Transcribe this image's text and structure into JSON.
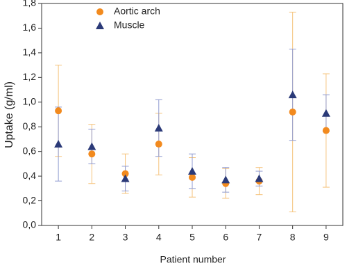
{
  "chart_data": {
    "type": "scatter",
    "x_label": "Patient number",
    "y_label": "Uptake (g/ml)",
    "x": [
      1,
      2,
      3,
      4,
      5,
      6,
      7,
      8,
      9
    ],
    "series": [
      {
        "name": "Aortic arch",
        "color": "#f28a1e",
        "error_color": "#f5c27a",
        "marker": "circle",
        "values": [
          0.93,
          0.58,
          0.42,
          0.66,
          0.39,
          0.34,
          0.36,
          0.92,
          0.77
        ],
        "errors": [
          0.37,
          0.24,
          0.16,
          0.25,
          0.16,
          0.12,
          0.11,
          0.81,
          0.46
        ]
      },
      {
        "name": "Muscle",
        "color": "#2b3a78",
        "error_color": "#8f9ad0",
        "marker": "triangle",
        "values": [
          0.66,
          0.64,
          0.38,
          0.79,
          0.44,
          0.37,
          0.38,
          1.06,
          0.91
        ],
        "errors": [
          0.3,
          0.14,
          0.1,
          0.23,
          0.14,
          0.1,
          0.06,
          0.37,
          0.15
        ]
      }
    ],
    "xlim": [
      0.5,
      9.5
    ],
    "xticks": [
      1,
      2,
      3,
      4,
      5,
      6,
      7,
      8,
      9
    ],
    "ylim": [
      0,
      1.8
    ],
    "yticks": [
      {
        "value": 0,
        "label": "0,0"
      },
      {
        "value": 0.2,
        "label": "0,2"
      },
      {
        "value": 0.4,
        "label": "0,4"
      },
      {
        "value": 0.6,
        "label": "0,6"
      },
      {
        "value": 0.8,
        "label": "0,8"
      },
      {
        "value": 1.0,
        "label": "1,0"
      },
      {
        "value": 1.2,
        "label": "1,2"
      },
      {
        "value": 1.4,
        "label": "1,4"
      },
      {
        "value": 1.6,
        "label": "1,6"
      },
      {
        "value": 1.8,
        "label": "1,8"
      }
    ],
    "legend": "top-left"
  }
}
